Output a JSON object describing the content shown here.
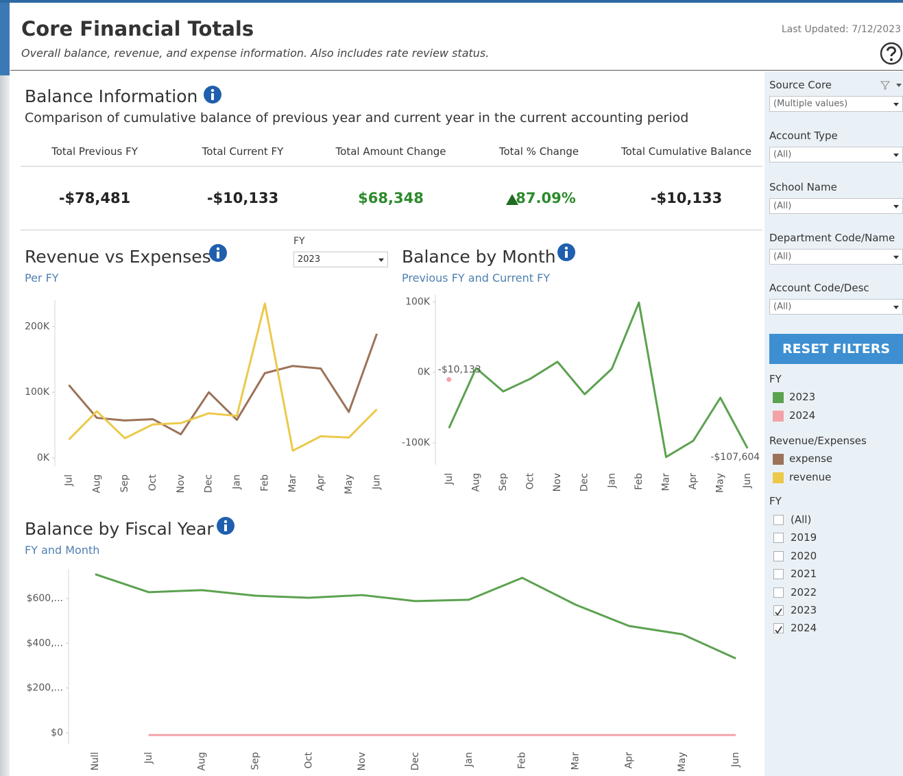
{
  "header": {
    "title": "Core Financial Totals",
    "subtitle": "Overall balance, revenue, and expense information.  Also includes rate review status.",
    "last_updated": "Last Updated: 7/12/2023"
  },
  "balance_info": {
    "title": "Balance Information",
    "description": "Comparison of cumulative balance of previous year and current year in the current accounting period",
    "kpis": [
      {
        "label": "Total Previous FY",
        "value": "-$78,481"
      },
      {
        "label": "Total Current FY",
        "value": "-$10,133"
      },
      {
        "label": "Total Amount Change",
        "value": "$68,348"
      },
      {
        "label": "Total % Change",
        "value": "87.09%"
      },
      {
        "label": "Total Cumulative Balance",
        "value": "-$10,133"
      }
    ]
  },
  "revenue_fy_filter": {
    "label": "FY",
    "value": "2023"
  },
  "filters": [
    {
      "label": "Source Core",
      "value": "(Multiple values)"
    },
    {
      "label": "Account Type",
      "value": "(All)"
    },
    {
      "label": "School Name",
      "value": "(All)"
    },
    {
      "label": "Department Code/Name",
      "value": "(All)"
    },
    {
      "label": "Account Code/Desc",
      "value": "(All)"
    }
  ],
  "reset_button": "RESET FILTERS",
  "legends": [
    {
      "title": "FY",
      "items": [
        {
          "label": "2023",
          "color": "#5ba24f"
        },
        {
          "label": "2024",
          "color": "#f3a3a8"
        }
      ]
    },
    {
      "title": "Revenue/Expenses",
      "items": [
        {
          "label": "expense",
          "color": "#9c7259"
        },
        {
          "label": "revenue",
          "color": "#ecc94b"
        }
      ]
    }
  ],
  "fy_checklist": {
    "title": "FY",
    "items": [
      {
        "label": "(All)",
        "checked": false
      },
      {
        "label": "2019",
        "checked": false
      },
      {
        "label": "2020",
        "checked": false
      },
      {
        "label": "2021",
        "checked": false
      },
      {
        "label": "2022",
        "checked": false
      },
      {
        "label": "2023",
        "checked": true
      },
      {
        "label": "2024",
        "checked": true
      }
    ]
  },
  "chart_data": [
    {
      "type": "line",
      "title": "Revenue vs Expenses",
      "subtitle": "Per FY",
      "categories": [
        "Jul",
        "Aug",
        "Sep",
        "Oct",
        "Nov",
        "Dec",
        "Jan",
        "Feb",
        "Mar",
        "Apr",
        "May",
        "Jun"
      ],
      "series": [
        {
          "name": "expense",
          "color": "#9c7259",
          "values": [
            111000,
            61000,
            57000,
            59000,
            36000,
            100000,
            58000,
            129000,
            140000,
            136000,
            70000,
            189000
          ]
        },
        {
          "name": "revenue",
          "color": "#ecc94b",
          "values": [
            28000,
            71000,
            30000,
            51000,
            53000,
            68000,
            64000,
            235000,
            11000,
            33000,
            31000,
            74000
          ]
        }
      ],
      "ylim": [
        -12500,
        240000
      ],
      "yticks": [
        {
          "value": 0,
          "label": "0K"
        },
        {
          "value": 100000,
          "label": "100K"
        },
        {
          "value": 200000,
          "label": "200K"
        }
      ]
    },
    {
      "type": "line",
      "title": "Balance by Month",
      "subtitle": "Previous FY and Current FY",
      "categories": [
        "Jul",
        "Aug",
        "Sep",
        "Oct",
        "Nov",
        "Dec",
        "Jan",
        "Feb",
        "Mar",
        "Apr",
        "May",
        "Jun"
      ],
      "series": [
        {
          "name": "2023",
          "color": "#5ba24f",
          "values": [
            -79000,
            6000,
            -27000,
            -9000,
            15000,
            -31000,
            5000,
            99000,
            -120000,
            -97000,
            -36000,
            -107604
          ],
          "value_labels": [
            null,
            null,
            null,
            null,
            null,
            null,
            null,
            null,
            null,
            null,
            null,
            "-$107,604"
          ]
        },
        {
          "name": "2024",
          "color": "#f3a3a8",
          "values": [
            -10133,
            null,
            null,
            null,
            null,
            null,
            null,
            null,
            null,
            null,
            null,
            null
          ],
          "value_labels": [
            "-$10,133",
            null,
            null,
            null,
            null,
            null,
            null,
            null,
            null,
            null,
            null,
            null
          ]
        }
      ],
      "ylim": [
        -131000,
        110000
      ],
      "yticks": [
        {
          "value": -100000,
          "label": "-100K"
        },
        {
          "value": 0,
          "label": "0K"
        },
        {
          "value": 100000,
          "label": "100K"
        }
      ]
    },
    {
      "type": "line",
      "title": "Balance by Fiscal Year",
      "subtitle": "FY and Month",
      "categories": [
        "Null",
        "Jul",
        "Aug",
        "Sep",
        "Oct",
        "Nov",
        "Dec",
        "Jan",
        "Feb",
        "Mar",
        "Apr",
        "May",
        "Jun"
      ],
      "series": [
        {
          "name": "2023",
          "color": "#5ba24f",
          "values": [
            708000,
            628000,
            637000,
            612000,
            603000,
            615000,
            588000,
            594000,
            692000,
            572000,
            477000,
            440000,
            332000
          ]
        },
        {
          "name": "2024",
          "color": "#f3a3a8",
          "values": [
            null,
            -10133,
            -10133,
            -10133,
            -10133,
            -10133,
            -10133,
            -10133,
            -10133,
            -10133,
            -10133,
            -10133,
            -10133
          ]
        }
      ],
      "ylim": [
        -49000,
        731500
      ],
      "yticks": [
        {
          "value": 0,
          "label": "$0"
        },
        {
          "value": 200000,
          "label": "$200,..."
        },
        {
          "value": 400000,
          "label": "$400,..."
        },
        {
          "value": 600000,
          "label": "$600,..."
        }
      ]
    }
  ]
}
